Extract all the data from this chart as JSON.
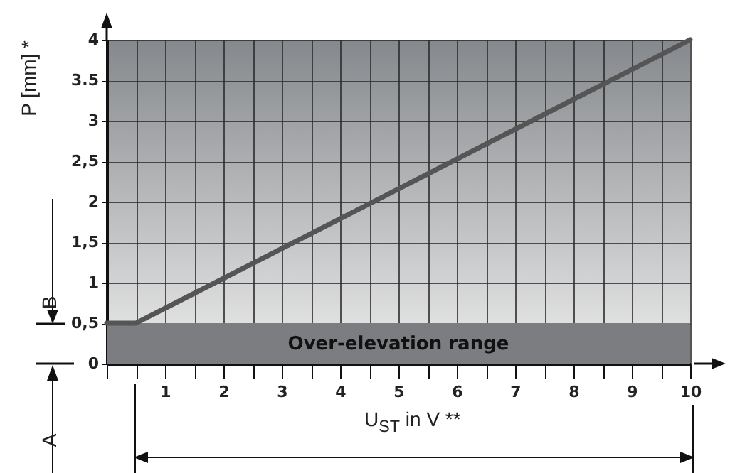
{
  "chart_data": {
    "type": "line",
    "xlabel": "U$_{ST}$ in V **",
    "ylabel": "P [mm] *",
    "x": [
      0,
      0.5,
      10
    ],
    "series": [
      {
        "color": "#555555",
        "values": [
          0.5,
          0.5,
          4
        ]
      }
    ],
    "xlim": [
      0,
      10
    ],
    "ylim": [
      0,
      4
    ],
    "xticks": [
      {
        "value": 0,
        "label": null
      },
      {
        "value": 0.5,
        "label": null
      },
      1,
      {
        "value": 1.5,
        "label": null
      },
      2,
      {
        "value": 2.5,
        "label": null
      },
      3,
      {
        "value": 3.5,
        "label": null
      },
      4,
      {
        "value": 4.5,
        "label": null
      },
      5,
      {
        "value": 5.5,
        "label": null
      },
      6,
      {
        "value": 6.5,
        "label": null
      },
      7,
      {
        "value": 7.5,
        "label": null
      },
      8,
      {
        "value": 8.5,
        "label": null
      },
      9,
      {
        "value": 9.5,
        "label": null
      },
      10
    ],
    "yticks": [
      0,
      {
        "value": 0.5,
        "label": "0,5"
      },
      1,
      {
        "value": 1.5,
        "label": "1,5"
      },
      2,
      {
        "value": 2.5,
        "label": "2,5"
      },
      3,
      3.5,
      4
    ],
    "bands": [
      {
        "axis": "y",
        "from": 0,
        "to": 0.5,
        "label": "Over-elevation range",
        "color": "#7b7d81"
      }
    ],
    "annotations": [
      "A",
      "B"
    ],
    "grid": true,
    "marker": "none",
    "line_style": "solid"
  }
}
